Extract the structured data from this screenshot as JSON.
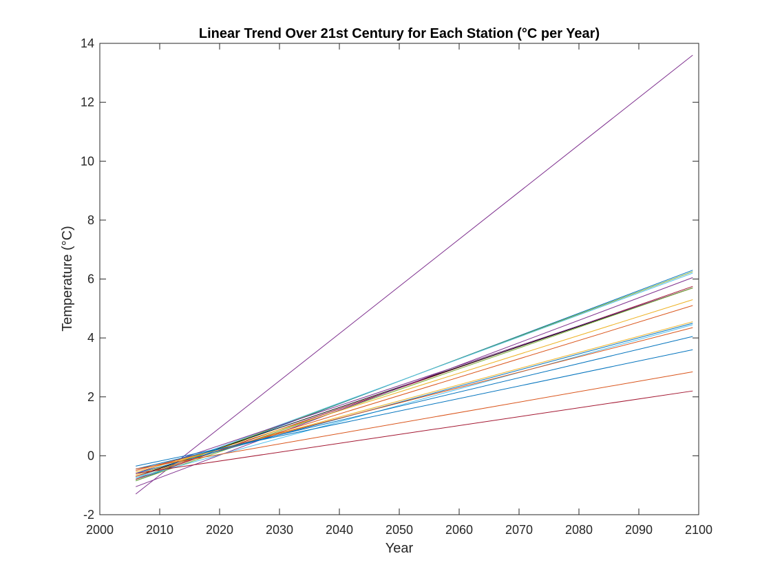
{
  "chart_data": {
    "type": "line",
    "title": "Linear Trend Over 21st Century for Each Station (°C per Year)",
    "xlabel": "Year",
    "ylabel": "Temperature (°C)",
    "xlim": [
      2000,
      2100
    ],
    "ylim": [
      -2,
      14
    ],
    "xticks": [
      "2000",
      "2010",
      "2020",
      "2030",
      "2040",
      "2050",
      "2060",
      "2070",
      "2080",
      "2090",
      "2100"
    ],
    "yticks": [
      "-2",
      "0",
      "2",
      "4",
      "6",
      "8",
      "10",
      "12",
      "14"
    ],
    "grid": false,
    "x_start": 2006,
    "x_end": 2099,
    "series": [
      {
        "color": "#7E2F8E",
        "values": [
          -1.3,
          13.6
        ]
      },
      {
        "color": "#0072BD",
        "values": [
          -0.85,
          6.3
        ]
      },
      {
        "color": "#77AC30",
        "values": [
          -0.8,
          6.25
        ]
      },
      {
        "color": "#4DBEEE",
        "values": [
          -0.75,
          6.2
        ]
      },
      {
        "color": "#A2142F",
        "values": [
          -0.8,
          5.75
        ]
      },
      {
        "color": "#000000",
        "values": [
          -0.7,
          5.7
        ]
      },
      {
        "color": "#7E2F8E",
        "values": [
          -0.6,
          5.7
        ]
      },
      {
        "color": "#77AC30",
        "values": [
          -0.85,
          5.7
        ]
      },
      {
        "color": "#7E2F8E",
        "values": [
          -1.05,
          6.05
        ]
      },
      {
        "color": "#EDB120",
        "values": [
          -0.65,
          5.3
        ]
      },
      {
        "color": "#D95319",
        "values": [
          -0.7,
          5.1
        ]
      },
      {
        "color": "#EDB120",
        "values": [
          -0.55,
          4.55
        ]
      },
      {
        "color": "#4DBEEE",
        "values": [
          -0.75,
          4.45
        ]
      },
      {
        "color": "#0072BD",
        "values": [
          -0.6,
          4.5
        ]
      },
      {
        "color": "#D95319",
        "values": [
          -0.5,
          4.35
        ]
      },
      {
        "color": "#0072BD",
        "values": [
          -0.45,
          4.05
        ]
      },
      {
        "color": "#0072BD",
        "values": [
          -0.35,
          3.6
        ]
      },
      {
        "color": "#D95319",
        "values": [
          -0.45,
          2.85
        ]
      },
      {
        "color": "#A2142F",
        "values": [
          -0.6,
          2.2
        ]
      }
    ]
  }
}
